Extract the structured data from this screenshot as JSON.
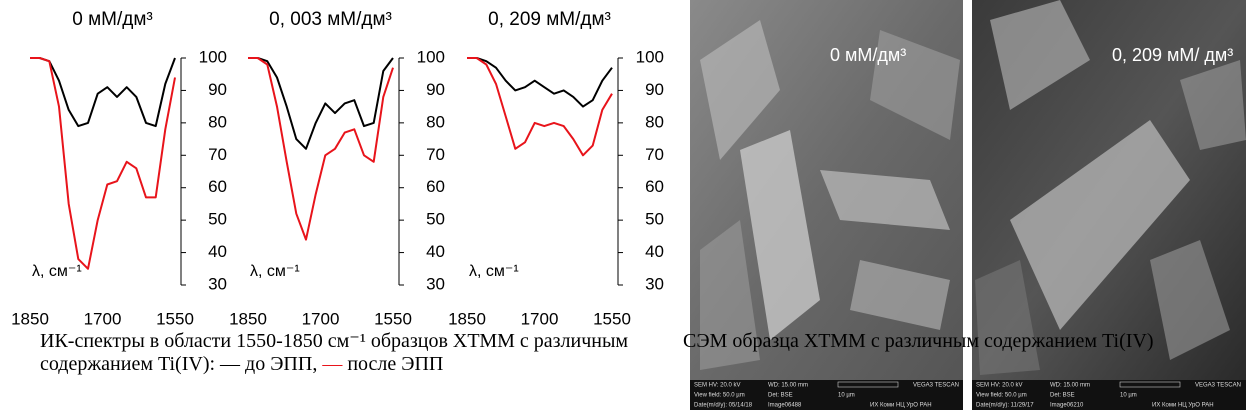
{
  "chart_data": [
    {
      "type": "line",
      "title": "0 мМ/дм³",
      "annotation": "λ, см⁻¹",
      "x": [
        1850,
        1830,
        1810,
        1790,
        1770,
        1750,
        1730,
        1710,
        1690,
        1670,
        1650,
        1630,
        1610,
        1590,
        1570,
        1550
      ],
      "series": [
        {
          "color": "#000000",
          "values": [
            100,
            100,
            99,
            93,
            84,
            79,
            80,
            89,
            91,
            88,
            91,
            88,
            80,
            79,
            92,
            100
          ]
        },
        {
          "color": "#e8141b",
          "values": [
            100,
            100,
            99,
            85,
            55,
            38,
            35,
            50,
            61,
            62,
            68,
            66,
            57,
            57,
            78,
            94
          ]
        }
      ],
      "xlim": [
        1850,
        1550
      ],
      "xticks": [
        1850,
        1700,
        1550
      ],
      "ylim": [
        30,
        100
      ],
      "yticks": [
        30,
        40,
        50,
        60,
        70,
        80,
        90,
        100
      ]
    },
    {
      "type": "line",
      "title": "0, 003 мМ/дм³",
      "annotation": "λ, см⁻¹",
      "x": [
        1850,
        1830,
        1810,
        1790,
        1770,
        1750,
        1730,
        1710,
        1690,
        1670,
        1650,
        1630,
        1610,
        1590,
        1570,
        1550
      ],
      "series": [
        {
          "color": "#000000",
          "values": [
            100,
            100,
            99,
            94,
            85,
            75,
            72,
            80,
            86,
            83,
            86,
            87,
            79,
            80,
            96,
            100
          ]
        },
        {
          "color": "#e8141b",
          "values": [
            100,
            100,
            98,
            85,
            68,
            52,
            44,
            58,
            70,
            72,
            77,
            78,
            70,
            68,
            88,
            97
          ]
        }
      ],
      "xlim": [
        1850,
        1550
      ],
      "xticks": [
        1850,
        1700,
        1550
      ],
      "ylim": [
        30,
        100
      ],
      "yticks": [
        30,
        40,
        50,
        60,
        70,
        80,
        90,
        100
      ]
    },
    {
      "type": "line",
      "title": "0, 209 мМ/дм³",
      "annotation": "λ, см⁻¹",
      "x": [
        1850,
        1830,
        1810,
        1790,
        1770,
        1750,
        1730,
        1710,
        1690,
        1670,
        1650,
        1630,
        1610,
        1590,
        1570,
        1550
      ],
      "series": [
        {
          "color": "#000000",
          "values": [
            100,
            100,
            99,
            97,
            93,
            90,
            91,
            93,
            91,
            89,
            90,
            88,
            85,
            87,
            93,
            97
          ]
        },
        {
          "color": "#e8141b",
          "values": [
            100,
            100,
            98,
            92,
            82,
            72,
            74,
            80,
            79,
            80,
            79,
            75,
            70,
            73,
            84,
            89
          ]
        }
      ],
      "xlim": [
        1850,
        1550
      ],
      "xticks": [
        1850,
        1700,
        1550
      ],
      "ylim": [
        30,
        100
      ],
      "yticks": [
        30,
        40,
        50,
        60,
        70,
        80,
        90,
        100
      ]
    }
  ],
  "ir_caption": [
    "ИК-спектры в области 1550-1850 см⁻¹ образцов ХТММ с различным содержанием Ti(IV): ",
    "—",
    " до ЭПП, ",
    "—",
    " после ЭПП"
  ],
  "sem_images": [
    {
      "label": "0 мМ/дм³",
      "info": [
        "SEM HV: 20.0 kV",
        "WD: 15.00 mm",
        "VEGA3 TESCAN",
        "View field: 50.0 µm",
        "Det: BSE",
        "10 µm",
        "Date(m/d/y): 05/14/18",
        "Image06488",
        "ИХ Коми НЦ УрО РАН"
      ]
    },
    {
      "label": "0, 209 мМ/ дм³",
      "info": [
        "SEM HV: 20.0 kV",
        "WD: 15.00 mm",
        "VEGA3 TESCAN",
        "View field: 50.0 µm",
        "Det: BSE",
        "10 µm",
        "Date(m/d/y): 11/29/17",
        "Image06210",
        "ИХ Коми НЦ УрО РАН"
      ]
    }
  ],
  "sem_caption": "СЭМ образца ХТММ с различным содержанием Ti(IV)"
}
